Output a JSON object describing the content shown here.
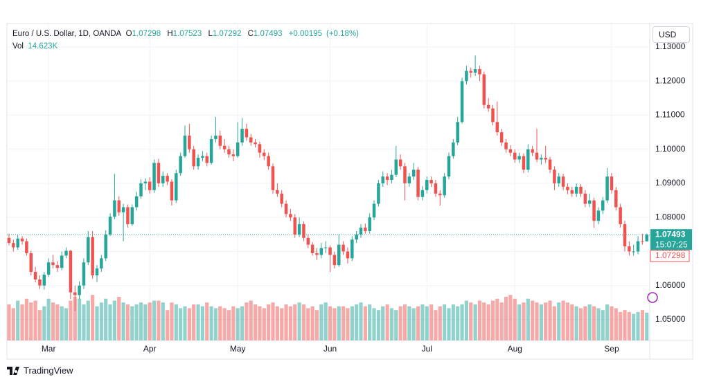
{
  "header": {
    "symbol": "Euro / U.S. Dollar, 1D, OANDA",
    "letters": [
      "O",
      "H",
      "L",
      "C"
    ],
    "change": "+0.00195",
    "change_pct": "(+0.18%)",
    "vol_title": "Vol",
    "vol_value_label": "14.623K",
    "currency": "USD",
    "countdown": "15:07:25",
    "brand": "TradingView"
  },
  "chart_data": {
    "type": "candlestick",
    "up_color": "#26a69a",
    "down_color": "#ef5350",
    "grid": true,
    "ylim": [
      1.0439,
      1.1365
    ],
    "yticks": [
      {
        "value": 1.13,
        "label": "1.13000"
      },
      {
        "value": 1.12,
        "label": "1.12000"
      },
      {
        "value": 1.11,
        "label": "1.11000"
      },
      {
        "value": 1.1,
        "label": "1.10000"
      },
      {
        "value": 1.09,
        "label": "1.09000"
      },
      {
        "value": 1.08,
        "label": "1.08000"
      },
      {
        "value": 1.07,
        "label": "1.07000"
      },
      {
        "value": 1.06,
        "label": "1.06000"
      },
      {
        "value": 1.05,
        "label": "1.05000"
      }
    ],
    "categories": [
      null,
      null,
      null,
      null,
      null,
      null,
      null,
      null,
      null,
      "Mar",
      null,
      null,
      null,
      null,
      null,
      null,
      null,
      null,
      null,
      null,
      null,
      null,
      null,
      null,
      null,
      null,
      null,
      null,
      null,
      null,
      null,
      null,
      "Apr",
      null,
      null,
      null,
      null,
      null,
      null,
      null,
      null,
      null,
      null,
      null,
      null,
      null,
      null,
      null,
      null,
      null,
      null,
      null,
      "May",
      null,
      null,
      null,
      null,
      null,
      null,
      null,
      null,
      null,
      null,
      null,
      null,
      null,
      null,
      null,
      null,
      null,
      null,
      null,
      null,
      "Jun",
      null,
      null,
      null,
      null,
      null,
      null,
      null,
      null,
      null,
      null,
      null,
      null,
      null,
      null,
      null,
      null,
      null,
      null,
      null,
      null,
      null,
      "Jul",
      null,
      null,
      null,
      null,
      null,
      null,
      null,
      null,
      null,
      null,
      null,
      null,
      null,
      null,
      null,
      null,
      null,
      null,
      null,
      "Aug",
      null,
      null,
      null,
      null,
      null,
      null,
      null,
      null,
      null,
      null,
      null,
      null,
      null,
      null,
      null,
      null,
      null,
      null,
      null,
      null,
      null,
      "Sep",
      null,
      null,
      null,
      null,
      null,
      null,
      null,
      null
    ],
    "ohlc": [
      [
        1.074,
        1.0752,
        1.0718,
        1.0725
      ],
      [
        1.0725,
        1.0735,
        1.07,
        1.0712
      ],
      [
        1.0712,
        1.0748,
        1.0705,
        1.0738
      ],
      [
        1.0738,
        1.0745,
        1.072,
        1.073
      ],
      [
        1.073,
        1.0738,
        1.0688,
        1.0695
      ],
      [
        1.0695,
        1.0702,
        1.063,
        1.064
      ],
      [
        1.064,
        1.0655,
        1.061,
        1.0618
      ],
      [
        1.0618,
        1.063,
        1.059,
        1.06
      ],
      [
        1.06,
        1.064,
        1.0588,
        1.0632
      ],
      [
        1.0632,
        1.068,
        1.0625,
        1.0668
      ],
      [
        1.0668,
        1.069,
        1.065,
        1.066
      ],
      [
        1.066,
        1.0672,
        1.064,
        1.0652
      ],
      [
        1.0652,
        1.07,
        1.0645,
        1.0688
      ],
      [
        1.0688,
        1.0712,
        1.068,
        1.0702
      ],
      [
        1.0702,
        1.0705,
        1.056,
        1.058
      ],
      [
        1.058,
        1.06,
        1.0525,
        1.0572
      ],
      [
        1.0572,
        1.0612,
        1.056,
        1.06
      ],
      [
        1.06,
        1.068,
        1.059,
        1.0668
      ],
      [
        1.0668,
        1.076,
        1.066,
        1.0742
      ],
      [
        1.0742,
        1.076,
        1.062,
        1.063
      ],
      [
        1.063,
        1.066,
        1.061,
        1.065
      ],
      [
        1.065,
        1.069,
        1.064,
        1.068
      ],
      [
        1.068,
        1.0762,
        1.0672,
        1.075
      ],
      [
        1.075,
        1.0812,
        1.0745,
        1.0802
      ],
      [
        1.0802,
        1.0928,
        1.0795,
        1.085
      ],
      [
        1.085,
        1.0862,
        1.0805,
        1.0815
      ],
      [
        1.0815,
        1.084,
        1.073,
        1.083
      ],
      [
        1.083,
        1.0838,
        1.077,
        1.078
      ],
      [
        1.078,
        1.0838,
        1.0775,
        1.083
      ],
      [
        1.083,
        1.0875,
        1.082,
        1.0862
      ],
      [
        1.0862,
        1.0912,
        1.0855,
        1.09
      ],
      [
        1.09,
        1.0915,
        1.088,
        1.0905
      ],
      [
        1.0905,
        1.0918,
        1.087,
        1.088
      ],
      [
        1.088,
        1.097,
        1.0872,
        1.096
      ],
      [
        1.096,
        1.0972,
        1.089,
        1.09
      ],
      [
        1.09,
        1.0935,
        1.089,
        1.0922
      ],
      [
        1.0922,
        1.093,
        1.0895,
        1.0905
      ],
      [
        1.0905,
        1.0912,
        1.0835,
        1.085
      ],
      [
        1.085,
        1.094,
        1.0842,
        1.093
      ],
      [
        1.093,
        1.099,
        1.0922,
        1.098
      ],
      [
        1.098,
        1.107,
        1.0975,
        1.104
      ],
      [
        1.104,
        1.1075,
        1.099,
        1.1
      ],
      [
        1.1,
        1.101,
        1.094,
        1.095
      ],
      [
        1.095,
        1.0985,
        1.094,
        1.0975
      ],
      [
        1.0975,
        1.0995,
        1.0965,
        1.098
      ],
      [
        1.098,
        1.099,
        1.095,
        1.096
      ],
      [
        1.096,
        1.104,
        1.0955,
        1.103
      ],
      [
        1.103,
        1.1095,
        1.102,
        1.104
      ],
      [
        1.104,
        1.1055,
        1.1,
        1.101
      ],
      [
        1.101,
        1.103,
        1.099,
        1.1
      ],
      [
        1.1,
        1.101,
        1.0975,
        1.0985
      ],
      [
        1.0985,
        1.1,
        1.0965,
        1.098
      ],
      [
        1.098,
        1.108,
        1.0975,
        1.102
      ],
      [
        1.102,
        1.1092,
        1.101,
        1.106
      ],
      [
        1.106,
        1.1075,
        1.1025,
        1.1035
      ],
      [
        1.1035,
        1.1045,
        1.101,
        1.102
      ],
      [
        1.102,
        1.103,
        1.1005,
        1.1015
      ],
      [
        1.1015,
        1.1022,
        1.0975,
        1.099
      ],
      [
        1.099,
        1.1,
        1.0968,
        1.098
      ],
      [
        1.098,
        1.099,
        1.094,
        1.095
      ],
      [
        1.095,
        1.0958,
        1.087,
        1.088
      ],
      [
        1.088,
        1.09,
        1.086,
        1.087
      ],
      [
        1.087,
        1.088,
        1.083,
        1.084
      ],
      [
        1.084,
        1.085,
        1.08,
        1.081
      ],
      [
        1.081,
        1.0825,
        1.079,
        1.08
      ],
      [
        1.08,
        1.081,
        1.074,
        1.075
      ],
      [
        1.075,
        1.08,
        1.0742,
        1.078
      ],
      [
        1.078,
        1.0788,
        1.073,
        1.074
      ],
      [
        1.074,
        1.075,
        1.071,
        1.072
      ],
      [
        1.072,
        1.0728,
        1.0688,
        1.0695
      ],
      [
        1.0695,
        1.071,
        1.0675,
        1.069
      ],
      [
        1.069,
        1.0725,
        1.068,
        1.071
      ],
      [
        1.071,
        1.073,
        1.0695,
        1.0712
      ],
      [
        1.0712,
        1.0718,
        1.064,
        1.069
      ],
      [
        1.069,
        1.07,
        1.065,
        1.066
      ],
      [
        1.066,
        1.075,
        1.0655,
        1.072
      ],
      [
        1.072,
        1.073,
        1.069,
        1.07
      ],
      [
        1.07,
        1.0712,
        1.0665,
        1.068
      ],
      [
        1.068,
        1.0745,
        1.0672,
        1.0735
      ],
      [
        1.0735,
        1.076,
        1.0725,
        1.075
      ],
      [
        1.075,
        1.078,
        1.074,
        1.077
      ],
      [
        1.077,
        1.0782,
        1.0752,
        1.076
      ],
      [
        1.076,
        1.0812,
        1.0752,
        1.08
      ],
      [
        1.08,
        1.085,
        1.0792,
        1.084
      ],
      [
        1.084,
        1.091,
        1.0832,
        1.09
      ],
      [
        1.09,
        1.0935,
        1.089,
        1.092
      ],
      [
        1.092,
        1.093,
        1.0895,
        1.091
      ],
      [
        1.091,
        1.094,
        1.09,
        1.0925
      ],
      [
        1.0925,
        1.101,
        1.0918,
        1.097
      ],
      [
        1.097,
        1.0985,
        1.094,
        1.095
      ],
      [
        1.095,
        1.096,
        1.085,
        1.09
      ],
      [
        1.09,
        1.093,
        1.089,
        1.092
      ],
      [
        1.092,
        1.096,
        1.091,
        1.094
      ],
      [
        1.094,
        1.0948,
        1.085,
        1.086
      ],
      [
        1.086,
        1.0892,
        1.085,
        1.088
      ],
      [
        1.088,
        1.092,
        1.087,
        1.091
      ],
      [
        1.091,
        1.092,
        1.089,
        1.09
      ],
      [
        1.09,
        1.091,
        1.086,
        1.087
      ],
      [
        1.087,
        1.088,
        1.0835,
        1.0865
      ],
      [
        1.0865,
        1.093,
        1.0858,
        1.092
      ],
      [
        1.092,
        1.099,
        1.0912,
        1.098
      ],
      [
        1.098,
        1.103,
        1.0972,
        1.102
      ],
      [
        1.102,
        1.1095,
        1.1012,
        1.108
      ],
      [
        1.108,
        1.121,
        1.1075,
        1.12
      ],
      [
        1.12,
        1.1245,
        1.119,
        1.123
      ],
      [
        1.123,
        1.124,
        1.121,
        1.1225
      ],
      [
        1.1225,
        1.1275,
        1.1215,
        1.1235
      ],
      [
        1.1235,
        1.1245,
        1.12,
        1.122
      ],
      [
        1.122,
        1.1228,
        1.112,
        1.113
      ],
      [
        1.113,
        1.115,
        1.111,
        1.112
      ],
      [
        1.112,
        1.113,
        1.107,
        1.108
      ],
      [
        1.108,
        1.114,
        1.104,
        1.105
      ],
      [
        1.105,
        1.106,
        1.101,
        1.102
      ],
      [
        1.102,
        1.103,
        1.099,
        1.1
      ],
      [
        1.1,
        1.1012,
        1.098,
        1.099
      ],
      [
        1.099,
        1.1,
        1.096,
        1.097
      ],
      [
        1.097,
        1.099,
        1.096,
        1.098
      ],
      [
        1.098,
        1.0988,
        1.093,
        1.094
      ],
      [
        1.094,
        1.1015,
        1.0932,
        1.1
      ],
      [
        1.1,
        1.101,
        1.098,
        1.099
      ],
      [
        1.099,
        1.106,
        1.0962,
        1.097
      ],
      [
        1.097,
        1.0985,
        1.0955,
        1.0975
      ],
      [
        1.0975,
        1.101,
        1.096,
        1.097
      ],
      [
        1.097,
        1.0978,
        1.093,
        1.094
      ],
      [
        1.094,
        1.095,
        1.088,
        1.09
      ],
      [
        1.09,
        1.093,
        1.089,
        1.092
      ],
      [
        1.092,
        1.0928,
        1.088,
        1.089
      ],
      [
        1.089,
        1.09,
        1.0868,
        1.088
      ],
      [
        1.088,
        1.089,
        1.086,
        1.087
      ],
      [
        1.087,
        1.09,
        1.086,
        1.089
      ],
      [
        1.089,
        1.0898,
        1.086,
        1.087
      ],
      [
        1.087,
        1.088,
        1.083,
        1.084
      ],
      [
        1.084,
        1.087,
        1.083,
        1.085
      ],
      [
        1.085,
        1.0858,
        1.077,
        1.079
      ],
      [
        1.079,
        1.083,
        1.078,
        1.082
      ],
      [
        1.082,
        1.086,
        1.081,
        1.085
      ],
      [
        1.085,
        1.0945,
        1.0842,
        1.092
      ],
      [
        1.092,
        1.093,
        1.087,
        1.088
      ],
      [
        1.088,
        1.089,
        1.082,
        1.083
      ],
      [
        1.083,
        1.084,
        1.077,
        1.078
      ],
      [
        1.078,
        1.079,
        1.07,
        1.0715
      ],
      [
        1.0715,
        1.073,
        1.0688,
        1.07
      ],
      [
        1.07,
        1.072,
        1.0688,
        1.07
      ],
      [
        1.07,
        1.0745,
        1.0692,
        1.073
      ],
      [
        1.073,
        1.0752,
        1.072,
        1.07298
      ],
      [
        1.07298,
        1.07523,
        1.07292,
        1.07493
      ]
    ],
    "volume": [
      19,
      17,
      21,
      19,
      22,
      20,
      21,
      16,
      18,
      22,
      20,
      19,
      18,
      17,
      21,
      23,
      22,
      19,
      21,
      24,
      18,
      20,
      22,
      19,
      21,
      23,
      20,
      19,
      18,
      19,
      20,
      19,
      20,
      21,
      21,
      20,
      16,
      20,
      19,
      17,
      18,
      17,
      19,
      19,
      18,
      20,
      18,
      17,
      18,
      17,
      16,
      18,
      17,
      18,
      20,
      21,
      19,
      18,
      17,
      19,
      20,
      18,
      17,
      19,
      18,
      19,
      20,
      19,
      17,
      18,
      16,
      19,
      20,
      18,
      17,
      18,
      18,
      17,
      18,
      19,
      20,
      18,
      19,
      17,
      16,
      18,
      19,
      17,
      16,
      18,
      19,
      18,
      17,
      18,
      19,
      18,
      19,
      16,
      18,
      19,
      17,
      19,
      18,
      19,
      21,
      20,
      19,
      21,
      20,
      19,
      21,
      22,
      20,
      23,
      24,
      22,
      19,
      20,
      22,
      21,
      20,
      19,
      20,
      21,
      18,
      20,
      21,
      20,
      19,
      18,
      17,
      18,
      19,
      18,
      17,
      16,
      19,
      18,
      17,
      15,
      16,
      15,
      14,
      15,
      16,
      14.623
    ]
  }
}
